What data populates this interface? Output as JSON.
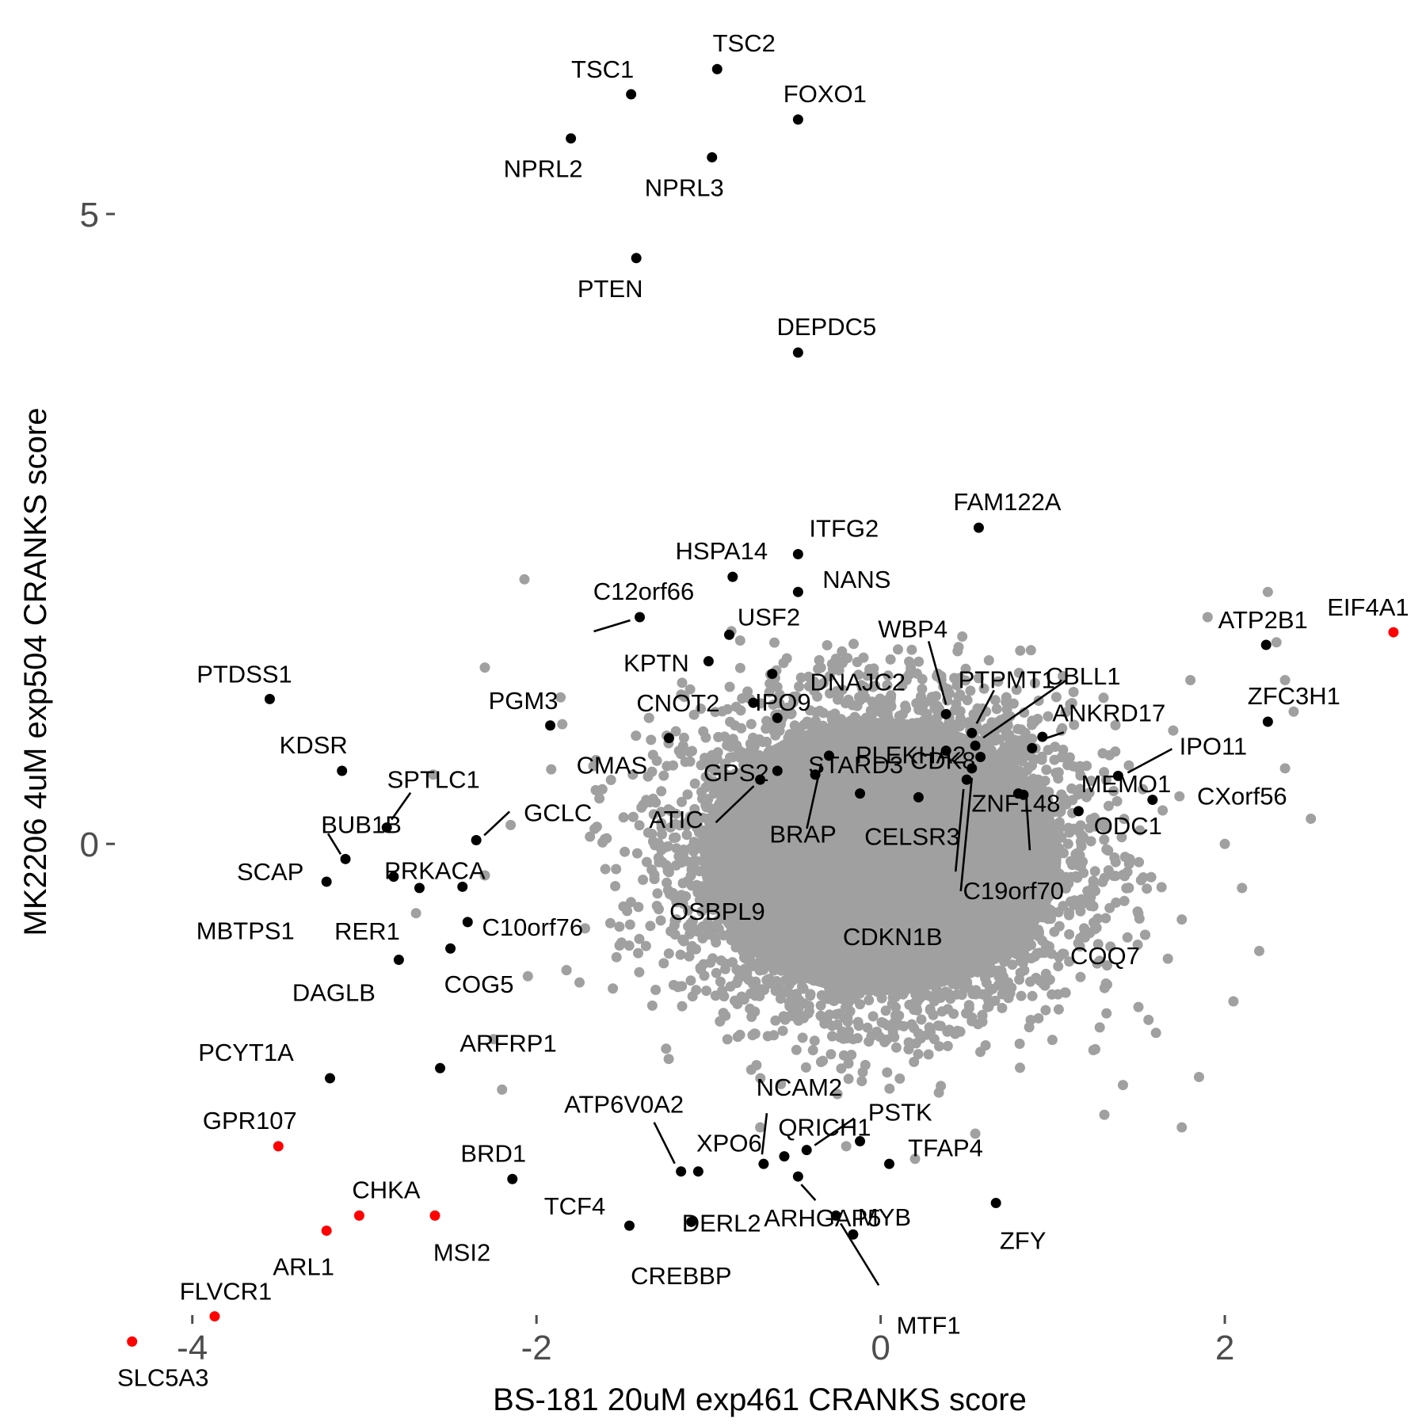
{
  "chart_data": {
    "type": "scatter",
    "title": "",
    "xlabel": "BS-181 20uM exp461 CRANKS score",
    "ylabel": "MK2206 4uM exp504 CRANKS score",
    "xlim": [
      -4.45,
      3.1
    ],
    "ylim": [
      -3.74,
      6.51
    ],
    "xticks": [
      -4,
      -2,
      0,
      2
    ],
    "yticks": [
      0,
      5
    ],
    "xtick_labels": [
      "-4",
      "-2",
      "0",
      "2"
    ],
    "ytick_labels": [
      "0",
      "5"
    ],
    "grid": false,
    "legend": "none",
    "colors": {
      "background": "#ffffff",
      "black": "#000000",
      "red": "#ff0000",
      "grey": "#a0a0a0",
      "tick": "#4d4d4d"
    },
    "background_cloud": {
      "color": "#a0a0a0",
      "center": [
        0.0,
        -0.1
      ],
      "core_spread": [
        0.55,
        0.6
      ],
      "approx_count": 7000
    },
    "grey_points": [
      {
        "x": -2.07,
        "y": 2.1
      },
      {
        "x": -2.3,
        "y": 1.4
      },
      {
        "x": -2.6,
        "y": 0.55
      },
      {
        "x": -2.7,
        "y": -0.55
      },
      {
        "x": -2.3,
        "y": -0.25
      },
      {
        "x": -2.05,
        "y": -1.05
      },
      {
        "x": -2.25,
        "y": -1.55
      },
      {
        "x": -2.2,
        "y": -1.95
      },
      {
        "x": -1.75,
        "y": -1.1
      },
      {
        "x": -1.6,
        "y": -0.2
      },
      {
        "x": -2.15,
        "y": 0.15
      },
      {
        "x": -1.85,
        "y": 0.95
      },
      {
        "x": 2.25,
        "y": 2.0
      },
      {
        "x": 2.3,
        "y": 1.6
      },
      {
        "x": 2.35,
        "y": 1.3
      },
      {
        "x": 2.4,
        "y": 1.05
      },
      {
        "x": 2.35,
        "y": 0.6
      },
      {
        "x": 2.5,
        "y": 0.2
      },
      {
        "x": 2.1,
        "y": -0.35
      },
      {
        "x": 2.2,
        "y": -0.85
      },
      {
        "x": 2.05,
        "y": -1.25
      },
      {
        "x": 1.85,
        "y": -1.85
      },
      {
        "x": 1.75,
        "y": -2.25
      },
      {
        "x": 1.9,
        "y": 1.8
      },
      {
        "x": 1.8,
        "y": 1.3
      },
      {
        "x": 1.7,
        "y": 0.9
      },
      {
        "x": 2.0,
        "y": 0.0
      },
      {
        "x": 1.75,
        "y": -0.6
      },
      {
        "x": 1.6,
        "y": -1.5
      },
      {
        "x": 1.3,
        "y": -2.15
      },
      {
        "x": 0.2,
        "y": -2.5
      },
      {
        "x": -0.2,
        "y": -2.4
      },
      {
        "x": 0.55,
        "y": -2.3
      },
      {
        "x": -0.7,
        "y": -2.25
      }
    ],
    "points": [
      {
        "label": "TSC2",
        "x": -0.95,
        "y": 6.15,
        "color": "black"
      },
      {
        "label": "TSC1",
        "x": -1.45,
        "y": 5.95,
        "color": "black"
      },
      {
        "label": "FOXO1",
        "x": -0.48,
        "y": 5.75,
        "color": "black"
      },
      {
        "label": "NPRL2",
        "x": -1.8,
        "y": 5.6,
        "color": "black"
      },
      {
        "label": "NPRL3",
        "x": -0.98,
        "y": 5.45,
        "color": "black"
      },
      {
        "label": "PTEN",
        "x": -1.42,
        "y": 4.65,
        "color": "black"
      },
      {
        "label": "DEPDC5",
        "x": -0.48,
        "y": 3.9,
        "color": "black"
      },
      {
        "label": "ITFG2",
        "x": -0.48,
        "y": 2.3,
        "color": "black"
      },
      {
        "label": "FAM122A",
        "x": 0.57,
        "y": 2.51,
        "color": "black"
      },
      {
        "label": "HSPA14",
        "x": -0.86,
        "y": 2.12,
        "color": "black"
      },
      {
        "label": "NANS",
        "x": -0.48,
        "y": 2.0,
        "color": "black"
      },
      {
        "label": "C12orf66",
        "x": -1.4,
        "y": 1.8,
        "color": "black"
      },
      {
        "label": "USF2",
        "x": -0.88,
        "y": 1.66,
        "color": "black"
      },
      {
        "label": "KPTN",
        "x": -1.0,
        "y": 1.45,
        "color": "black"
      },
      {
        "label": "DNAJC2",
        "x": -0.63,
        "y": 1.35,
        "color": "black"
      },
      {
        "label": "CNOT2",
        "x": -0.74,
        "y": 1.12,
        "color": "black"
      },
      {
        "label": "PGM3",
        "x": -1.92,
        "y": 0.94,
        "color": "black"
      },
      {
        "label": "CMAS",
        "x": -1.23,
        "y": 0.84,
        "color": "black"
      },
      {
        "label": "WBP4",
        "x": 0.38,
        "y": 1.03,
        "color": "black"
      },
      {
        "label": "PTPMT1",
        "x": 0.53,
        "y": 0.88,
        "color": "black"
      },
      {
        "label": "CBLL1",
        "x": 0.55,
        "y": 0.78,
        "color": "black"
      },
      {
        "label": "ANKRD17",
        "x": 0.88,
        "y": 0.76,
        "color": "black"
      },
      {
        "label": "PLEKHA2",
        "x": 0.58,
        "y": 0.69,
        "color": "black"
      },
      {
        "label": "ATP2B1",
        "x": 2.24,
        "y": 1.58,
        "color": "black"
      },
      {
        "label": "ZFC3H1",
        "x": 2.25,
        "y": 0.97,
        "color": "black"
      },
      {
        "label": "IPO11",
        "x": 1.38,
        "y": 0.54,
        "color": "black"
      },
      {
        "label": "CXorf56",
        "x": 1.58,
        "y": 0.35,
        "color": "black"
      },
      {
        "label": "MEMO1",
        "x": 1.15,
        "y": 0.26,
        "color": "black"
      },
      {
        "label": "IPO9",
        "x": -0.6,
        "y": 1.0,
        "color": "black"
      },
      {
        "label": "GPS2",
        "x": -0.6,
        "y": 0.58,
        "color": "black"
      },
      {
        "label": "STARD3",
        "x": -0.38,
        "y": 0.55,
        "color": "black"
      },
      {
        "label": "CDK8",
        "x": 0.38,
        "y": 0.74,
        "color": "black"
      },
      {
        "label": "ZNF148",
        "x": 0.8,
        "y": 0.4,
        "color": "black"
      },
      {
        "label": "ATIC",
        "x": -0.7,
        "y": 0.51,
        "color": "black"
      },
      {
        "label": "BRAP",
        "x": -0.12,
        "y": 0.4,
        "color": "black"
      },
      {
        "label": "CELSR3",
        "x": 0.22,
        "y": 0.37,
        "color": "black"
      },
      {
        "label": "OSBPL9",
        "x": -0.3,
        "y": 0.7,
        "color": "black"
      },
      {
        "label": "C19orf70",
        "x": 0.5,
        "y": 0.51,
        "color": "black"
      },
      {
        "label": "CDKN1B",
        "x": 0.53,
        "y": 0.6,
        "color": "black"
      },
      {
        "label": "COQ7",
        "x": 0.83,
        "y": 0.39,
        "color": "black"
      },
      {
        "label": "ODC1",
        "x": 0.94,
        "y": 0.85,
        "color": "black"
      },
      {
        "label": "PTDSS1",
        "x": -3.55,
        "y": 1.15,
        "color": "black"
      },
      {
        "label": "KDSR",
        "x": -3.13,
        "y": 0.58,
        "color": "black"
      },
      {
        "label": "SPTLC1",
        "x": -2.87,
        "y": 0.13,
        "color": "black"
      },
      {
        "label": "GCLC",
        "x": -2.35,
        "y": 0.03,
        "color": "black"
      },
      {
        "label": "BUB1B",
        "x": -3.11,
        "y": -0.12,
        "color": "black"
      },
      {
        "label": "SCAP",
        "x": -3.22,
        "y": -0.3,
        "color": "black"
      },
      {
        "label": "PRKACA",
        "x": -2.83,
        "y": -0.26,
        "color": "black"
      },
      {
        "label": "RER1",
        "x": -2.68,
        "y": -0.35,
        "color": "black"
      },
      {
        "label": "MBTPS1",
        "x": -2.43,
        "y": -0.34,
        "color": "black"
      },
      {
        "label": "C10orf76",
        "x": -2.4,
        "y": -0.62,
        "color": "black"
      },
      {
        "label": "DAGLB",
        "x": -2.8,
        "y": -0.92,
        "color": "black"
      },
      {
        "label": "COG5",
        "x": -2.5,
        "y": -0.83,
        "color": "black"
      },
      {
        "label": "PCYT1A",
        "x": -3.2,
        "y": -1.86,
        "color": "black"
      },
      {
        "label": "ARFRP1",
        "x": -2.56,
        "y": -1.78,
        "color": "black"
      },
      {
        "label": "BRD1",
        "x": -2.14,
        "y": -2.66,
        "color": "black"
      },
      {
        "label": "TCF4",
        "x": -1.46,
        "y": -3.03,
        "color": "black"
      },
      {
        "label": "ATP6V0A2",
        "x": -1.16,
        "y": -2.6,
        "color": "black"
      },
      {
        "label": "XPO6",
        "x": -1.06,
        "y": -2.6,
        "color": "black"
      },
      {
        "label": "DERL2",
        "x": -1.1,
        "y": -3.0,
        "color": "black"
      },
      {
        "label": "NCAM2",
        "x": -0.68,
        "y": -2.54,
        "color": "black"
      },
      {
        "label": "QRICH1",
        "x": -0.56,
        "y": -2.48,
        "color": "black"
      },
      {
        "label": "ARHGAP5",
        "x": -0.48,
        "y": -2.64,
        "color": "black"
      },
      {
        "label": "PSTK",
        "x": -0.43,
        "y": -2.43,
        "color": "black"
      },
      {
        "label": "TFAP4",
        "x": -0.12,
        "y": -2.36,
        "color": "black"
      },
      {
        "label": "MYB",
        "x": 0.05,
        "y": -2.54,
        "color": "black"
      },
      {
        "label": "MTF1",
        "x": -0.26,
        "y": -2.95,
        "color": "black"
      },
      {
        "label": "CREBBP",
        "x": -0.16,
        "y": -3.1,
        "color": "black"
      },
      {
        "label": "ZFY",
        "x": 0.67,
        "y": -2.85,
        "color": "black"
      },
      {
        "label": "EIF4A1",
        "x": 2.98,
        "y": 1.68,
        "color": "red"
      },
      {
        "label": "GPR107",
        "x": -3.5,
        "y": -2.4,
        "color": "red"
      },
      {
        "label": "CHKA",
        "x": -3.03,
        "y": -2.95,
        "color": "red"
      },
      {
        "label": "MSI2",
        "x": -2.59,
        "y": -2.95,
        "color": "red"
      },
      {
        "label": "ARL1",
        "x": -3.22,
        "y": -3.07,
        "color": "red"
      },
      {
        "label": "FLVCR1",
        "x": -3.87,
        "y": -3.75,
        "color": "red"
      },
      {
        "label": "SLC5A3",
        "x": -4.35,
        "y": -3.95,
        "color": "red"
      }
    ]
  }
}
